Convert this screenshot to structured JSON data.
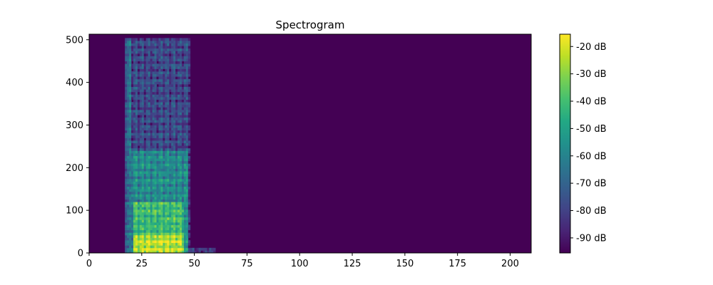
{
  "chart_data": {
    "type": "heatmap",
    "title": "Spectrogram",
    "xlabel": "",
    "ylabel": "",
    "xlim": [
      0,
      210
    ],
    "ylim": [
      0,
      513
    ],
    "x_ticks": [
      0,
      25,
      50,
      75,
      100,
      125,
      150,
      175,
      200
    ],
    "y_ticks": [
      0,
      100,
      200,
      300,
      400,
      500
    ],
    "colormap": "viridis",
    "colorbar": {
      "range_db": [
        -95.5,
        -15.5
      ],
      "ticks": [
        -20,
        -30,
        -40,
        -50,
        -60,
        -70,
        -80,
        -90
      ],
      "tick_labels": [
        "-20 dB",
        "-30 dB",
        "-40 dB",
        "-50 dB",
        "-60 dB",
        "-70 dB",
        "-80 dB",
        "-90 dB"
      ]
    },
    "background_db": -95,
    "energy_regions": [
      {
        "x_start": 17,
        "x_end": 20,
        "y_max": 500,
        "level_db": -68,
        "note": "narrow onset streak"
      },
      {
        "x_start": 20,
        "x_end": 48,
        "y_max": 500,
        "level_db": -78,
        "note": "diffuse high-frequency energy"
      },
      {
        "x_start": 20,
        "x_end": 47,
        "y_max": 240,
        "level_db": -58,
        "note": "mid-frequency harmonics"
      },
      {
        "x_start": 21,
        "x_end": 45,
        "y_max": 120,
        "level_db": -42,
        "note": "strong low-frequency harmonics"
      },
      {
        "x_start": 21,
        "x_end": 45,
        "y_max": 40,
        "level_db": -25,
        "note": "fundamental band"
      },
      {
        "x_start": 45,
        "x_end": 60,
        "y_max": 10,
        "level_db": -85,
        "note": "trailing decay"
      }
    ]
  }
}
